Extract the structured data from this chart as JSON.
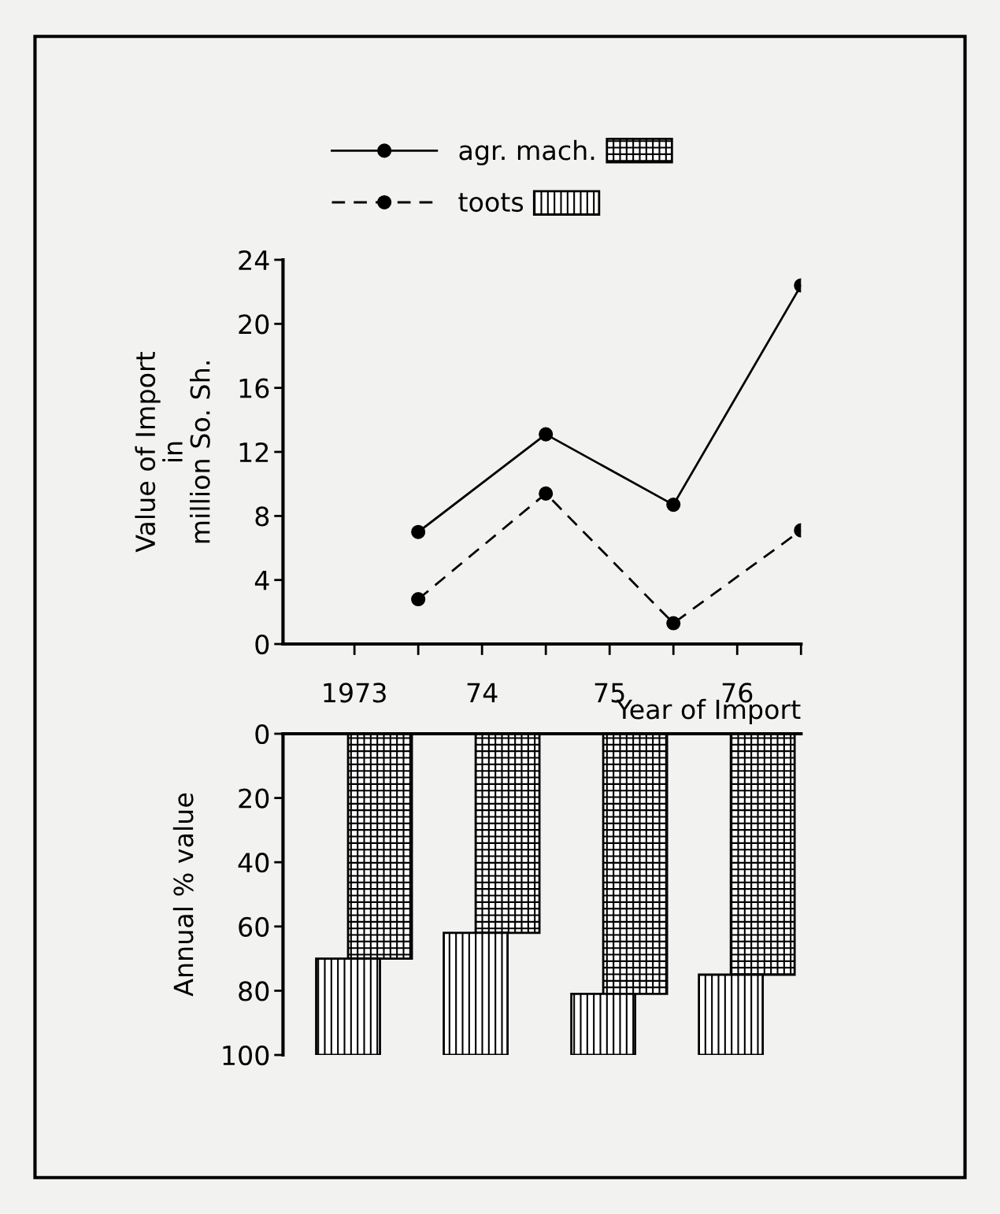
{
  "chart_data": [
    {
      "type": "line",
      "ylabel": "Value of Import\nin\nmillion So. Sh.",
      "xlabel": "Year of Import",
      "x": [
        1973.5,
        1974.5,
        1975.5,
        1976.5
      ],
      "series": [
        {
          "name": "agr. mach.",
          "color": "#000000",
          "values": [
            7.0,
            13.1,
            8.7,
            22.4
          ],
          "line_style": "solid",
          "marker": "circle"
        },
        {
          "name": "toots",
          "color": "#000000",
          "values": [
            2.8,
            9.4,
            1.3,
            7.1
          ],
          "line_style": "dashed",
          "marker": "circle"
        }
      ],
      "xlim": [
        1972.44,
        1976.5
      ],
      "xticks": [
        {
          "value": 1973,
          "label": "1973"
        },
        {
          "value": 1973.5,
          "label": null
        },
        {
          "value": 1974,
          "label": "74"
        },
        {
          "value": 1974.5,
          "label": null
        },
        {
          "value": 1975,
          "label": "75"
        },
        {
          "value": 1975.5,
          "label": null
        },
        {
          "value": 1976,
          "label": "76"
        },
        {
          "value": 1976.5,
          "label": null
        }
      ],
      "ylim": [
        0,
        24
      ],
      "yticks": [
        0,
        4,
        8,
        12,
        16,
        20,
        24
      ],
      "grid": false,
      "legend": "top"
    },
    {
      "type": "bar",
      "stacked": true,
      "ylabel": "Annual % value",
      "series": [
        {
          "color": "#000000",
          "x": [
            1973.2,
            1974.2,
            1975.2,
            1976.2
          ],
          "values": [
            70,
            62,
            81,
            75
          ]
        },
        {
          "color": "#000000",
          "x": [
            1972.95,
            1973.95,
            1974.95,
            1975.95
          ],
          "values": [
            30,
            38,
            19,
            25
          ]
        }
      ],
      "xlim": [
        1972.44,
        1976.5
      ],
      "ylim": [
        100,
        0
      ],
      "yticks": [
        0,
        20,
        40,
        60,
        80,
        100
      ],
      "tick_labels": "y",
      "grid": false,
      "legend": false
    }
  ]
}
